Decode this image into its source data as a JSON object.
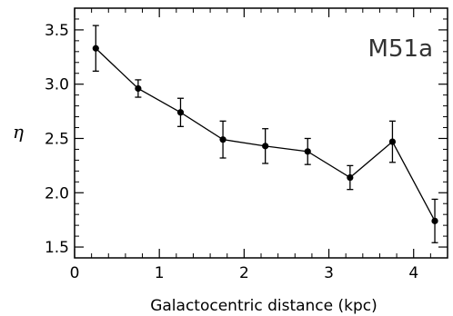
{
  "chart_data": {
    "type": "line",
    "title": "",
    "xlabel": "Galactocentric distance (kpc)",
    "ylabel": "η",
    "annotation": "M51a",
    "xlim": [
      0,
      4.4
    ],
    "ylim": [
      1.4,
      3.7
    ],
    "x_ticks": [
      0,
      1,
      2,
      3,
      4
    ],
    "y_ticks": [
      1.5,
      2.0,
      2.5,
      3.0,
      3.5
    ],
    "y_tick_labels": [
      "1.5",
      "2.0",
      "2.5",
      "3.0",
      "3.5"
    ],
    "grid": false,
    "series": [
      {
        "x": [
          0.25,
          0.75,
          1.25,
          1.75,
          2.25,
          2.75,
          3.25,
          3.75,
          4.25
        ],
        "y": [
          3.33,
          2.96,
          2.74,
          2.49,
          2.43,
          2.38,
          2.14,
          2.47,
          1.74
        ],
        "err": [
          0.21,
          0.08,
          0.13,
          0.17,
          0.16,
          0.12,
          0.11,
          0.19,
          0.2
        ],
        "color": "#000000"
      }
    ]
  }
}
